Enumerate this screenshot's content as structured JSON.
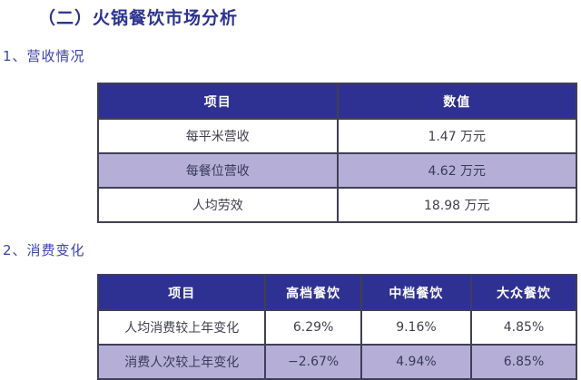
{
  "page": {
    "title": "（二）火锅餐饮市场分析"
  },
  "colors": {
    "title_text": "#2B3390",
    "section_text": "#3C44A8",
    "table_header_bg": "#2E3192",
    "table_header_text": "#FFFFFF",
    "row_white_bg": "#FFFFFF",
    "row_lavender_bg": "#B5AFD7",
    "cell_text": "#3F3F4E",
    "border": "#3F3F55"
  },
  "sections": [
    {
      "label": "1、营收情况",
      "table": {
        "headers": [
          "项目",
          "数值"
        ],
        "rows": [
          [
            "每平米营收",
            "1.47 万元"
          ],
          [
            "每餐位营收",
            "4.62 万元"
          ],
          [
            "人均劳效",
            "18.98 万元"
          ]
        ]
      }
    },
    {
      "label": "2、消费变化",
      "table": {
        "headers": [
          "项目",
          "高档餐饮",
          "中档餐饮",
          "大众餐饮"
        ],
        "rows": [
          [
            "人均消费较上年变化",
            "6.29%",
            "9.16%",
            "4.85%"
          ],
          [
            "消费人次较上年变化",
            "−2.67%",
            "4.94%",
            "6.85%"
          ]
        ]
      }
    }
  ],
  "chart_data": [
    {
      "type": "table",
      "title": "营收情况",
      "columns": [
        "项目",
        "数值"
      ],
      "rows": [
        {
          "项目": "每平米营收",
          "数值": "1.47 万元"
        },
        {
          "项目": "每餐位营收",
          "数值": "4.62 万元"
        },
        {
          "项目": "人均劳效",
          "数值": "18.98 万元"
        }
      ]
    },
    {
      "type": "table",
      "title": "消费变化",
      "columns": [
        "项目",
        "高档餐饮",
        "中档餐饮",
        "大众餐饮"
      ],
      "rows": [
        {
          "项目": "人均消费较上年变化",
          "高档餐饮": "6.29%",
          "中档餐饮": "9.16%",
          "大众餐饮": "4.85%"
        },
        {
          "项目": "消费人次较上年变化",
          "高档餐饮": "−2.67%",
          "中档餐饮": "4.94%",
          "大众餐饮": "6.85%"
        }
      ]
    }
  ]
}
